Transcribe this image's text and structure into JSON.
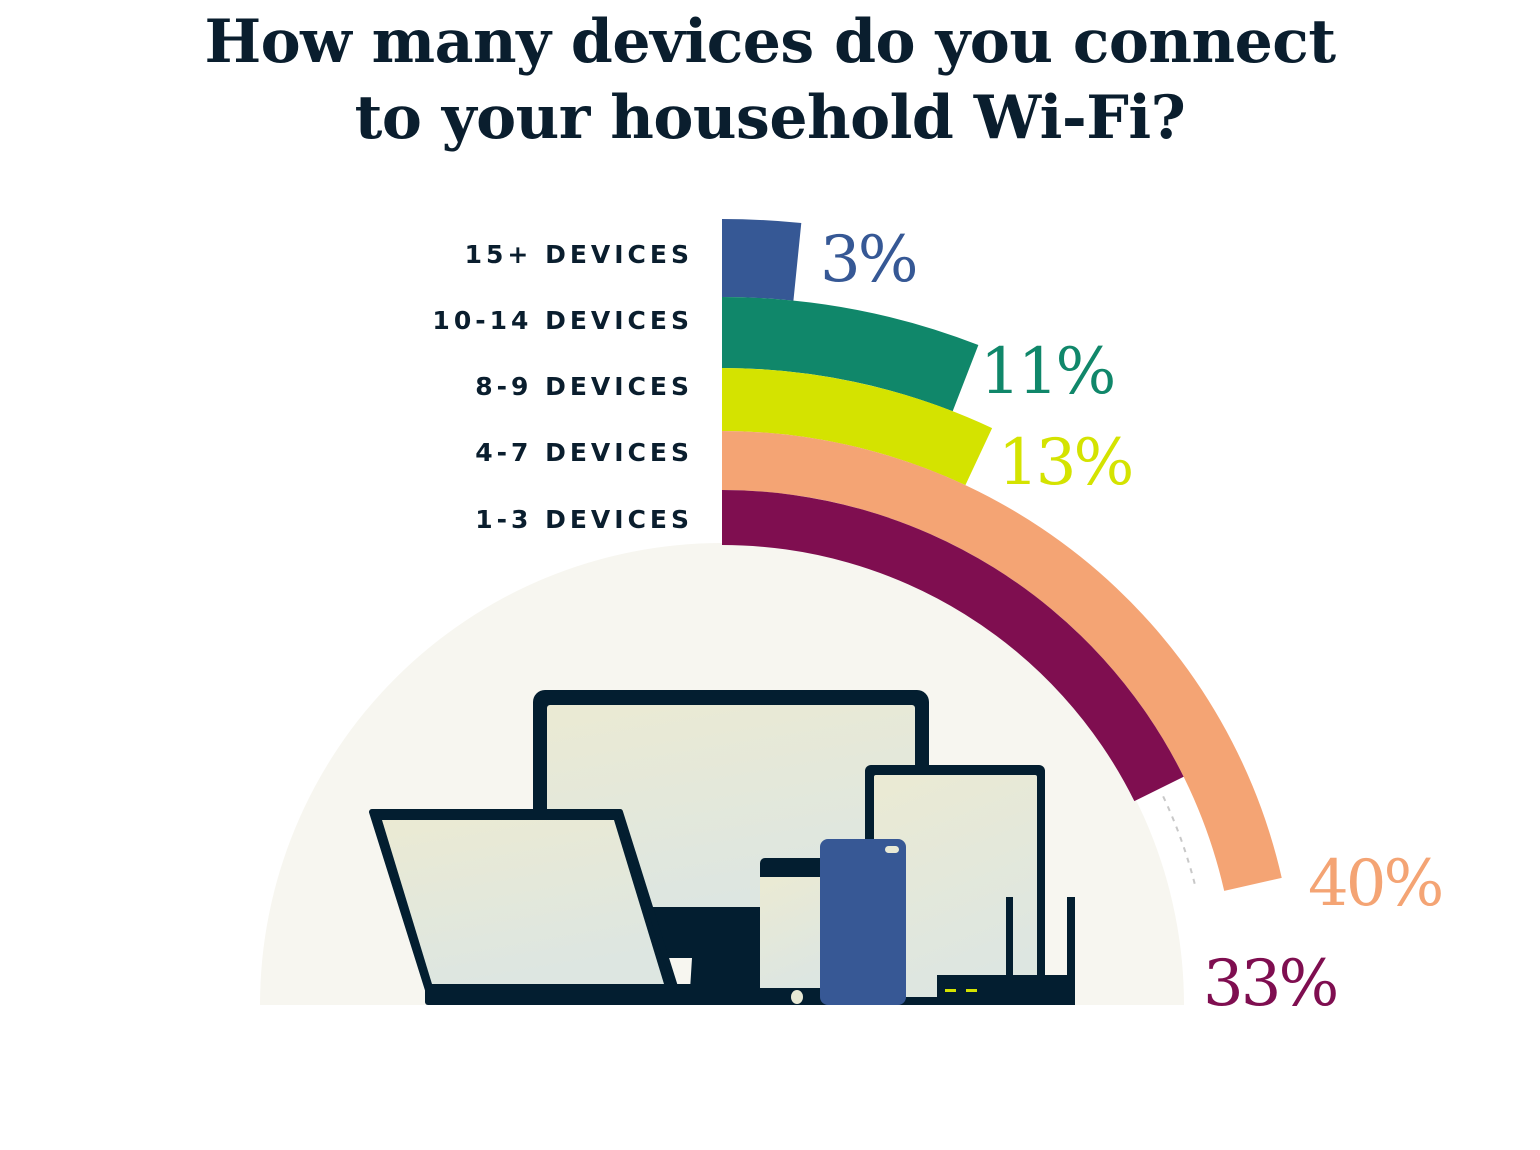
{
  "chart_data": {
    "type": "radial-bar",
    "title": "How many devices do you connect to your household Wi-Fi?",
    "title_lines": [
      "How many devices do you connect",
      "to your household Wi-Fi?"
    ],
    "categories": [
      "15+ DEVICES",
      "10-14 DEVICES",
      "8-9 DEVICES",
      "4-7 DEVICES",
      "1-3 DEVICES"
    ],
    "values": [
      3,
      11,
      13,
      40,
      33
    ],
    "value_labels": [
      "3%",
      "11%",
      "13%",
      "40%",
      "33%"
    ],
    "colors": [
      "#365895",
      "#10876a",
      "#d4e300",
      "#f4a474",
      "#7f0e50"
    ],
    "unit": "%",
    "grid": false,
    "legend": "none"
  },
  "illustration": {
    "icons": [
      "desktop-monitor-icon",
      "laptop-icon",
      "smartphone-icon",
      "smartphone-icon",
      "tablet-icon",
      "wifi-router-icon"
    ],
    "dark": "#031e30",
    "blue": "#375895",
    "screen": "#e8e9d5",
    "led": "#d4e300",
    "backdrop": "#f7f6f0"
  }
}
